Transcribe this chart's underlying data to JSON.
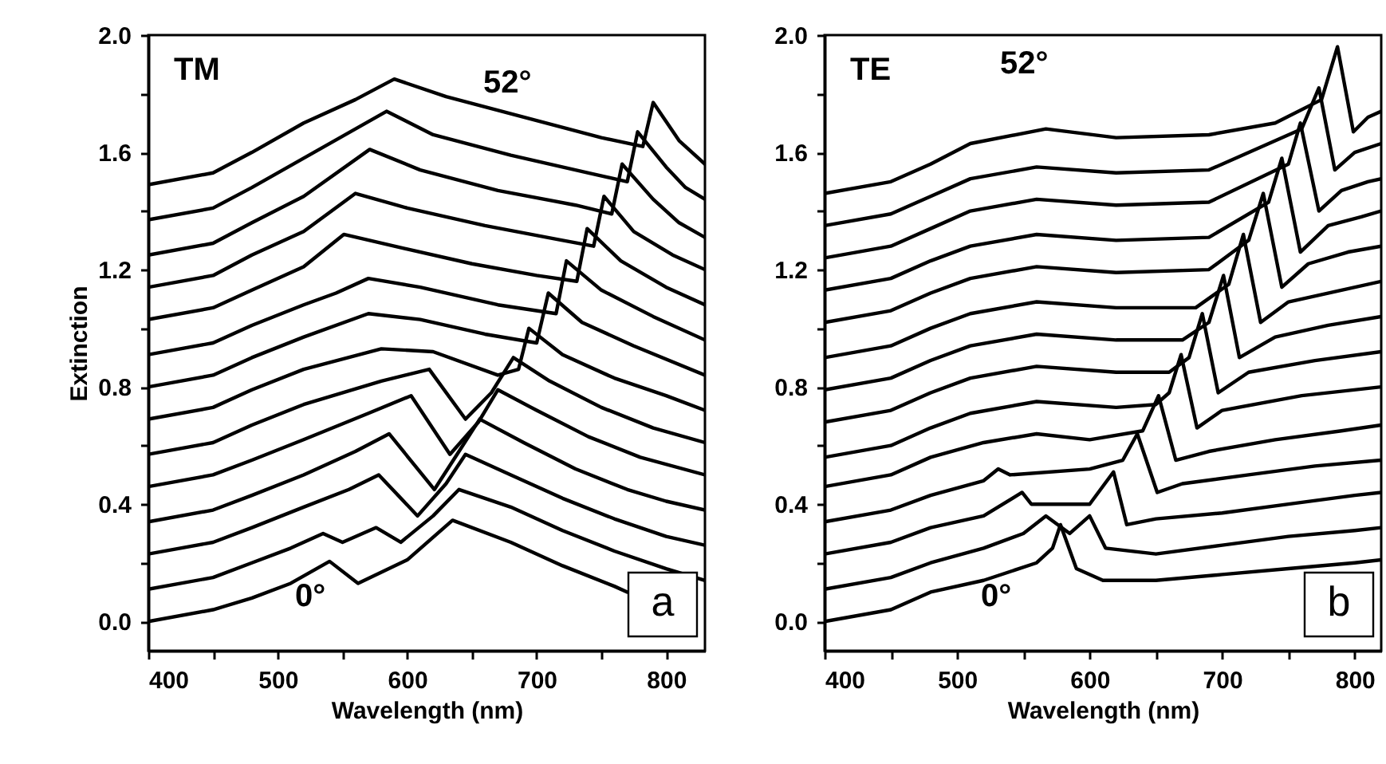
{
  "chart_data": [
    {
      "type": "line",
      "xlabel": "Wavelength (nm)",
      "ylabel": "Extinction",
      "xlim": [
        400,
        830
      ],
      "ylim": [
        -0.1,
        2.0
      ],
      "xticks": [
        400,
        {
          "value": 450,
          "label": null
        },
        500,
        {
          "value": 550,
          "label": null
        },
        600,
        {
          "value": 650,
          "label": null
        },
        700,
        {
          "value": 750,
          "label": null
        },
        800
      ],
      "yticks": [
        {
          "value": 0,
          "label": "0.0"
        },
        {
          "value": 0.2,
          "label": null
        },
        {
          "value": 0.4,
          "label": "0.4"
        },
        {
          "value": 0.6,
          "label": null
        },
        {
          "value": 0.8,
          "label": "0.8"
        },
        {
          "value": 1.0,
          "label": null
        },
        {
          "value": 1.2,
          "label": "1.2"
        },
        {
          "value": 1.4,
          "label": null
        },
        {
          "value": 1.6,
          "label": "1.6"
        },
        {
          "value": 1.8,
          "label": null
        },
        {
          "value": 2.0,
          "label": "2.0"
        }
      ],
      "annotations": [
        "TM",
        "a",
        "0°",
        "52°"
      ],
      "series": [
        {
          "color": "#000000",
          "x": [
            400,
            450,
            480,
            510,
            540,
            562,
            600,
            635,
            680,
            720,
            760,
            770
          ],
          "values": [
            0,
            0.04,
            0.08,
            0.13,
            0.205,
            0.13,
            0.21,
            0.345,
            0.27,
            0.19,
            0.12,
            0.1
          ]
        },
        {
          "color": "#000000",
          "x": [
            400,
            450,
            480,
            510,
            535,
            550,
            576,
            595,
            620,
            640,
            680,
            720,
            760,
            800,
            830
          ],
          "values": [
            0.11,
            0.15,
            0.2,
            0.25,
            0.3,
            0.27,
            0.32,
            0.27,
            0.36,
            0.45,
            0.39,
            0.31,
            0.24,
            0.18,
            0.14
          ]
        },
        {
          "color": "#000000",
          "x": [
            400,
            450,
            480,
            520,
            555,
            578,
            608,
            630,
            645,
            680,
            720,
            760,
            800,
            830
          ],
          "values": [
            0.23,
            0.27,
            0.32,
            0.39,
            0.45,
            0.5,
            0.36,
            0.47,
            0.57,
            0.5,
            0.42,
            0.35,
            0.29,
            0.26
          ]
        },
        {
          "color": "#000000",
          "x": [
            400,
            450,
            480,
            520,
            560,
            586,
            621,
            640,
            656,
            690,
            730,
            770,
            800,
            830
          ],
          "values": [
            0.34,
            0.38,
            0.43,
            0.5,
            0.58,
            0.64,
            0.45,
            0.58,
            0.69,
            0.61,
            0.52,
            0.45,
            0.41,
            0.38
          ]
        },
        {
          "color": "#000000",
          "x": [
            400,
            450,
            480,
            520,
            570,
            603,
            633,
            655,
            670,
            700,
            740,
            780,
            830
          ],
          "values": [
            0.46,
            0.5,
            0.55,
            0.62,
            0.71,
            0.77,
            0.57,
            0.68,
            0.79,
            0.72,
            0.63,
            0.56,
            0.5
          ]
        },
        {
          "color": "#000000",
          "x": [
            400,
            450,
            480,
            520,
            580,
            617,
            645,
            665,
            682,
            710,
            750,
            790,
            830
          ],
          "values": [
            0.57,
            0.61,
            0.67,
            0.74,
            0.82,
            0.86,
            0.69,
            0.78,
            0.9,
            0.82,
            0.73,
            0.66,
            0.61
          ]
        },
        {
          "color": "#000000",
          "x": [
            400,
            450,
            480,
            520,
            580,
            620,
            670,
            686,
            694,
            720,
            760,
            800,
            830
          ],
          "values": [
            0.69,
            0.73,
            0.79,
            0.86,
            0.93,
            0.92,
            0.84,
            0.86,
            1.0,
            0.91,
            0.83,
            0.77,
            0.72
          ]
        },
        {
          "color": "#000000",
          "x": [
            400,
            450,
            480,
            520,
            570,
            610,
            660,
            700,
            709,
            735,
            775,
            830
          ],
          "values": [
            0.8,
            0.84,
            0.9,
            0.97,
            1.05,
            1.03,
            0.98,
            0.95,
            1.12,
            1.02,
            0.94,
            0.84
          ]
        },
        {
          "color": "#000000",
          "x": [
            400,
            450,
            480,
            520,
            545,
            570,
            610,
            670,
            715,
            723,
            750,
            790,
            830
          ],
          "values": [
            0.91,
            0.95,
            1.01,
            1.08,
            1.12,
            1.17,
            1.14,
            1.08,
            1.05,
            1.23,
            1.13,
            1.04,
            0.96
          ]
        },
        {
          "color": "#000000",
          "x": [
            400,
            450,
            480,
            520,
            551,
            590,
            650,
            700,
            731,
            739,
            765,
            800,
            830
          ],
          "values": [
            1.03,
            1.07,
            1.13,
            1.21,
            1.32,
            1.28,
            1.22,
            1.18,
            1.16,
            1.34,
            1.23,
            1.14,
            1.08
          ]
        },
        {
          "color": "#000000",
          "x": [
            400,
            450,
            480,
            520,
            560,
            600,
            660,
            720,
            744,
            752,
            775,
            805,
            830
          ],
          "values": [
            1.14,
            1.18,
            1.25,
            1.33,
            1.46,
            1.41,
            1.35,
            1.3,
            1.28,
            1.45,
            1.33,
            1.25,
            1.2
          ]
        },
        {
          "color": "#000000",
          "x": [
            400,
            450,
            480,
            520,
            571,
            610,
            670,
            730,
            758,
            766,
            790,
            810,
            830
          ],
          "values": [
            1.25,
            1.29,
            1.36,
            1.45,
            1.61,
            1.54,
            1.47,
            1.42,
            1.39,
            1.56,
            1.44,
            1.36,
            1.31
          ]
        },
        {
          "color": "#000000",
          "x": [
            400,
            450,
            480,
            520,
            584,
            620,
            680,
            740,
            770,
            778,
            800,
            815,
            830
          ],
          "values": [
            1.37,
            1.41,
            1.48,
            1.58,
            1.74,
            1.66,
            1.59,
            1.53,
            1.5,
            1.67,
            1.55,
            1.48,
            1.44
          ]
        },
        {
          "color": "#000000",
          "x": [
            400,
            450,
            480,
            520,
            560,
            590,
            630,
            690,
            750,
            782,
            790,
            810,
            830
          ],
          "values": [
            1.49,
            1.53,
            1.6,
            1.7,
            1.78,
            1.85,
            1.79,
            1.72,
            1.65,
            1.62,
            1.77,
            1.64,
            1.56
          ]
        }
      ]
    },
    {
      "type": "line",
      "xlabel": "Wavelength (nm)",
      "xlim": [
        400,
        820
      ],
      "ylim": [
        -0.1,
        2.0
      ],
      "xticks": [
        400,
        {
          "value": 450,
          "label": null
        },
        500,
        {
          "value": 550,
          "label": null
        },
        600,
        {
          "value": 650,
          "label": null
        },
        700,
        {
          "value": 750,
          "label": null
        },
        800
      ],
      "yticks": [
        {
          "value": 0,
          "label": "0.0"
        },
        {
          "value": 0.2,
          "label": null
        },
        {
          "value": 0.4,
          "label": "0.4"
        },
        {
          "value": 0.6,
          "label": null
        },
        {
          "value": 0.8,
          "label": "0.8"
        },
        {
          "value": 1.0,
          "label": null
        },
        {
          "value": 1.2,
          "label": "1.2"
        },
        {
          "value": 1.4,
          "label": null
        },
        {
          "value": 1.6,
          "label": "1.6"
        },
        {
          "value": 1.8,
          "label": null
        },
        {
          "value": 2.0,
          "label": "2.0"
        }
      ],
      "annotations": [
        "TE",
        "b",
        "0°",
        "52°"
      ],
      "series": [
        {
          "color": "#000000",
          "x": [
            400,
            450,
            480,
            520,
            560,
            572,
            578,
            590,
            610,
            650,
            700,
            750,
            800,
            820
          ],
          "values": [
            0,
            0.04,
            0.1,
            0.14,
            0.2,
            0.25,
            0.33,
            0.18,
            0.14,
            0.14,
            0.16,
            0.18,
            0.2,
            0.21
          ]
        },
        {
          "color": "#000000",
          "x": [
            400,
            450,
            480,
            520,
            550,
            567,
            585,
            600,
            612,
            650,
            700,
            750,
            800,
            820
          ],
          "values": [
            0.11,
            0.15,
            0.2,
            0.25,
            0.3,
            0.36,
            0.3,
            0.36,
            0.25,
            0.23,
            0.26,
            0.29,
            0.31,
            0.32
          ]
        },
        {
          "color": "#000000",
          "x": [
            400,
            450,
            480,
            520,
            549,
            556,
            600,
            618,
            628,
            650,
            700,
            750,
            800,
            820
          ],
          "values": [
            0.23,
            0.27,
            0.32,
            0.36,
            0.44,
            0.4,
            0.4,
            0.51,
            0.33,
            0.35,
            0.37,
            0.4,
            0.43,
            0.44
          ]
        },
        {
          "color": "#000000",
          "x": [
            400,
            450,
            480,
            520,
            531,
            540,
            600,
            625,
            636,
            651,
            670,
            720,
            770,
            820
          ],
          "values": [
            0.34,
            0.38,
            0.43,
            0.48,
            0.52,
            0.5,
            0.52,
            0.55,
            0.64,
            0.44,
            0.47,
            0.5,
            0.53,
            0.55
          ]
        },
        {
          "color": "#000000",
          "x": [
            400,
            450,
            480,
            520,
            560,
            600,
            640,
            652,
            665,
            690,
            740,
            790,
            820
          ],
          "values": [
            0.46,
            0.5,
            0.56,
            0.61,
            0.64,
            0.62,
            0.65,
            0.77,
            0.55,
            0.58,
            0.62,
            0.65,
            0.67
          ]
        },
        {
          "color": "#000000",
          "x": [
            400,
            450,
            480,
            510,
            560,
            620,
            650,
            660,
            669,
            681,
            700,
            760,
            820
          ],
          "values": [
            0.56,
            0.6,
            0.66,
            0.71,
            0.75,
            0.73,
            0.74,
            0.78,
            0.91,
            0.66,
            0.72,
            0.77,
            0.8
          ]
        },
        {
          "color": "#000000",
          "x": [
            400,
            450,
            480,
            510,
            560,
            620,
            660,
            675,
            685,
            697,
            720,
            770,
            820
          ],
          "values": [
            0.68,
            0.72,
            0.78,
            0.83,
            0.87,
            0.85,
            0.85,
            0.9,
            1.05,
            0.78,
            0.85,
            0.89,
            0.92
          ]
        },
        {
          "color": "#000000",
          "x": [
            400,
            450,
            480,
            510,
            560,
            620,
            670,
            690,
            701,
            713,
            740,
            780,
            820
          ],
          "values": [
            0.79,
            0.83,
            0.89,
            0.94,
            0.98,
            0.96,
            0.96,
            1.02,
            1.18,
            0.9,
            0.97,
            1.01,
            1.04
          ]
        },
        {
          "color": "#000000",
          "x": [
            400,
            450,
            480,
            510,
            560,
            620,
            680,
            705,
            716,
            729,
            750,
            790,
            820
          ],
          "values": [
            0.9,
            0.94,
            1.0,
            1.05,
            1.09,
            1.07,
            1.07,
            1.15,
            1.32,
            1.02,
            1.09,
            1.13,
            1.16
          ]
        },
        {
          "color": "#000000",
          "x": [
            400,
            450,
            480,
            510,
            560,
            620,
            690,
            720,
            731,
            745,
            765,
            795,
            820
          ],
          "values": [
            1.02,
            1.06,
            1.12,
            1.17,
            1.21,
            1.19,
            1.2,
            1.3,
            1.46,
            1.14,
            1.22,
            1.26,
            1.28
          ]
        },
        {
          "color": "#000000",
          "x": [
            400,
            450,
            480,
            510,
            560,
            620,
            690,
            735,
            745,
            759,
            780,
            805,
            820
          ],
          "values": [
            1.13,
            1.17,
            1.23,
            1.28,
            1.32,
            1.3,
            1.31,
            1.43,
            1.58,
            1.26,
            1.35,
            1.38,
            1.4
          ]
        },
        {
          "color": "#000000",
          "x": [
            400,
            450,
            480,
            510,
            560,
            620,
            690,
            750,
            759,
            773,
            790,
            810,
            820
          ],
          "values": [
            1.24,
            1.28,
            1.34,
            1.4,
            1.44,
            1.42,
            1.43,
            1.56,
            1.7,
            1.4,
            1.47,
            1.5,
            1.51
          ]
        },
        {
          "color": "#000000",
          "x": [
            400,
            450,
            480,
            510,
            560,
            620,
            690,
            760,
            773,
            785,
            800,
            820
          ],
          "values": [
            1.35,
            1.39,
            1.45,
            1.51,
            1.55,
            1.53,
            1.54,
            1.68,
            1.82,
            1.54,
            1.6,
            1.63
          ]
        },
        {
          "color": "#000000",
          "x": [
            400,
            450,
            480,
            510,
            567,
            620,
            690,
            740,
            775,
            787,
            799,
            810,
            820
          ],
          "values": [
            1.46,
            1.5,
            1.56,
            1.63,
            1.68,
            1.65,
            1.66,
            1.7,
            1.78,
            1.96,
            1.67,
            1.72,
            1.74
          ]
        }
      ]
    }
  ]
}
